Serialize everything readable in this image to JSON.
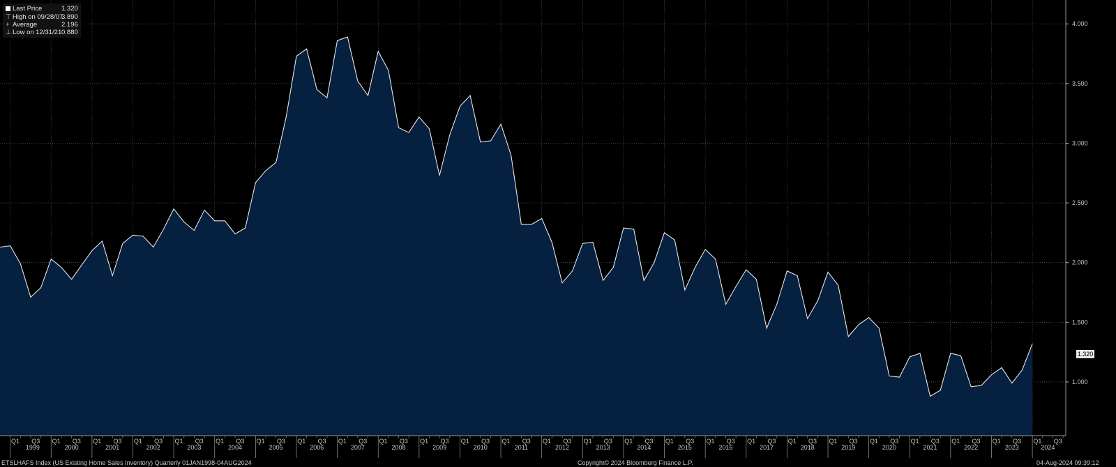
{
  "legend": {
    "last_price_label": "Last Price",
    "last_price_value": "1.320",
    "high_label": "High on 09/28/07",
    "high_value": "3.890",
    "average_label": "Average",
    "average_value": "2.196",
    "low_label": "Low on 12/31/21",
    "low_value": "0.880"
  },
  "last_value_tag": "1.320",
  "footer": {
    "left": "ETSLHAFS Index (US Existing Home Sales Inventory)  Quarterly 01JAN1998-04AUG2024",
    "center": "Copyright© 2024 Bloomberg Finance L.P.",
    "right": "04-Aug-2024 09:39:12"
  },
  "colors": {
    "background": "#000000",
    "fill": "#062040",
    "line": "#e6e6e6"
  },
  "chart_data": {
    "type": "area",
    "series": [
      {
        "name": "Last Price"
      }
    ],
    "ylim": [
      0.55,
      4.2
    ],
    "yticks": [
      "4.000",
      "3.500",
      "3.000",
      "2.500",
      "2.000",
      "1.500",
      "1.000"
    ],
    "ytick_values": [
      4.0,
      3.5,
      3.0,
      2.5,
      2.0,
      1.5,
      1.0
    ],
    "quarter_labels": [
      "Q1",
      "Q3"
    ],
    "years": [
      "1999",
      "2000",
      "2001",
      "2002",
      "2003",
      "2004",
      "2005",
      "2006",
      "2007",
      "2008",
      "2009",
      "2010",
      "2011",
      "2012",
      "2013",
      "2014",
      "2015",
      "2016",
      "2017",
      "2018",
      "2019",
      "2020",
      "2021",
      "2022",
      "2023",
      "2024"
    ],
    "x_start": 1998.75,
    "values": [
      2.13,
      2.14,
      1.99,
      1.71,
      1.79,
      2.03,
      1.96,
      1.86,
      1.98,
      2.1,
      2.18,
      1.89,
      2.16,
      2.23,
      2.22,
      2.13,
      2.28,
      2.45,
      2.34,
      2.27,
      2.44,
      2.35,
      2.35,
      2.24,
      2.29,
      2.67,
      2.77,
      2.84,
      3.22,
      3.73,
      3.79,
      3.45,
      3.38,
      3.86,
      3.89,
      3.52,
      3.4,
      3.77,
      3.61,
      3.13,
      3.09,
      3.22,
      3.12,
      2.73,
      3.07,
      3.31,
      3.4,
      3.01,
      3.02,
      3.16,
      2.9,
      2.32,
      2.32,
      2.37,
      2.17,
      1.83,
      1.93,
      2.16,
      2.17,
      1.85,
      1.96,
      2.29,
      2.28,
      1.85,
      2.0,
      2.25,
      2.19,
      1.77,
      1.96,
      2.11,
      2.03,
      1.65,
      1.8,
      1.94,
      1.86,
      1.45,
      1.65,
      1.93,
      1.89,
      1.53,
      1.68,
      1.92,
      1.81,
      1.38,
      1.48,
      1.54,
      1.45,
      1.05,
      1.04,
      1.21,
      1.24,
      0.88,
      0.93,
      1.24,
      1.22,
      0.96,
      0.97,
      1.06,
      1.12,
      0.99,
      1.1,
      1.32
    ]
  }
}
